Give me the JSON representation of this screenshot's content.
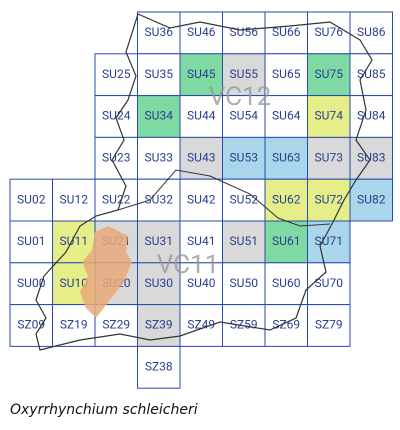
{
  "map": {
    "cells": [
      {
        "label": "SU36",
        "color": null
      },
      {
        "label": "SU46",
        "color": null
      },
      {
        "label": "SU56",
        "color": null
      },
      {
        "label": "SU66",
        "color": null
      },
      {
        "label": "SU76",
        "color": null
      },
      {
        "label": "SU86",
        "color": null
      },
      {
        "label": "SU25",
        "color": null
      },
      {
        "label": "SU35",
        "color": null
      },
      {
        "label": "SU45",
        "color": "#7fd9a2"
      },
      {
        "label": "SU55",
        "color": "#d9d9d9"
      },
      {
        "label": "SU65",
        "color": null
      },
      {
        "label": "SU75",
        "color": "#7fd9a2"
      },
      {
        "label": "SU85",
        "color": null
      },
      {
        "label": "SU24",
        "color": null
      },
      {
        "label": "SU34",
        "color": "#7fd9a2"
      },
      {
        "label": "SU44",
        "color": null
      },
      {
        "label": "SU54",
        "color": null
      },
      {
        "label": "SU64",
        "color": null
      },
      {
        "label": "SU74",
        "color": "#e6ee8a"
      },
      {
        "label": "SU84",
        "color": null
      },
      {
        "label": "SU23",
        "color": null
      },
      {
        "label": "SU33",
        "color": null
      },
      {
        "label": "SU43",
        "color": "#d9d9d9"
      },
      {
        "label": "SU53",
        "color": "#a9d6ea"
      },
      {
        "label": "SU63",
        "color": "#a9d6ea"
      },
      {
        "label": "SU73",
        "color": "#d9d9d9"
      },
      {
        "label": "SU83",
        "color": "#d9d9d9"
      },
      {
        "label": "SU02",
        "color": null
      },
      {
        "label": "SU12",
        "color": null
      },
      {
        "label": "SU22",
        "color": null
      },
      {
        "label": "SU32",
        "color": null
      },
      {
        "label": "SU42",
        "color": null
      },
      {
        "label": "SU52",
        "color": null
      },
      {
        "label": "SU62",
        "color": "#e6ee8a"
      },
      {
        "label": "SU72",
        "color": "#e6ee8a"
      },
      {
        "label": "SU82",
        "color": "#a9d6ea"
      },
      {
        "label": "SU01",
        "color": null
      },
      {
        "label": "SU11",
        "color": "#e6ee8a"
      },
      {
        "label": "SU21",
        "color": "#d9d9d9"
      },
      {
        "label": "SU31",
        "color": "#d9d9d9"
      },
      {
        "label": "SU41",
        "color": null
      },
      {
        "label": "SU51",
        "color": "#d9d9d9"
      },
      {
        "label": "SU61",
        "color": "#7fd9a2"
      },
      {
        "label": "SU71",
        "color": "#a9d6ea"
      },
      {
        "label": "SU00",
        "color": null
      },
      {
        "label": "SU10",
        "color": "#e6ee8a"
      },
      {
        "label": "SU20",
        "color": "#d9d9d9"
      },
      {
        "label": "SU30",
        "color": "#d9d9d9"
      },
      {
        "label": "SU40",
        "color": null
      },
      {
        "label": "SU50",
        "color": null
      },
      {
        "label": "SU60",
        "color": null
      },
      {
        "label": "SU70",
        "color": null
      },
      {
        "label": "SZ09",
        "color": null
      },
      {
        "label": "SZ19",
        "color": null
      },
      {
        "label": "SZ29",
        "color": null
      },
      {
        "label": "SZ39",
        "color": "#d9d9d9"
      },
      {
        "label": "SZ49",
        "color": null
      },
      {
        "label": "SZ59",
        "color": null
      },
      {
        "label": "SZ69",
        "color": null
      },
      {
        "label": "SZ79",
        "color": null
      },
      {
        "label": "SZ38",
        "color": null
      }
    ],
    "regions": [
      "VC12",
      "VC11"
    ],
    "caption": "Oxyrrhynchium schleicheri"
  }
}
